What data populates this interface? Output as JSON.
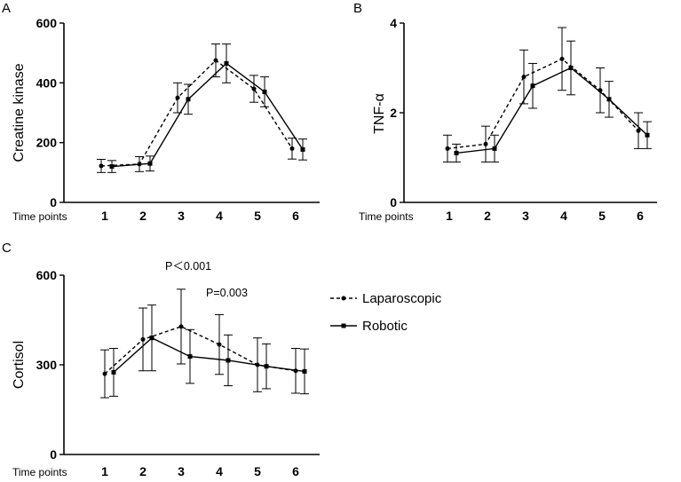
{
  "chart_data": [
    {
      "panel": "A",
      "type": "line",
      "ylabel": "Creatine kinase",
      "xlabel": "Time points",
      "categories": [
        "1",
        "2",
        "3",
        "4",
        "5",
        "6"
      ],
      "ylim": [
        0,
        600
      ],
      "yticks": [
        0,
        200,
        400,
        600
      ],
      "annotations": [],
      "series": [
        {
          "name": "Laparoscopic",
          "values": [
            122,
            128,
            350,
            475,
            380,
            180
          ],
          "errors": [
            22,
            25,
            50,
            55,
            45,
            35
          ]
        },
        {
          "name": "Robotic",
          "values": [
            120,
            130,
            345,
            465,
            370,
            177
          ],
          "errors": [
            20,
            25,
            50,
            65,
            50,
            35
          ]
        }
      ]
    },
    {
      "panel": "B",
      "type": "line",
      "ylabel": "TNF-α",
      "xlabel": "Time points",
      "categories": [
        "1",
        "2",
        "3",
        "4",
        "5",
        "6"
      ],
      "ylim": [
        0,
        4
      ],
      "yticks": [
        0,
        2,
        4
      ],
      "annotations": [],
      "series": [
        {
          "name": "Laparoscopic",
          "values": [
            1.2,
            1.3,
            2.8,
            3.2,
            2.5,
            1.6
          ],
          "errors": [
            0.3,
            0.4,
            0.6,
            0.7,
            0.5,
            0.4
          ]
        },
        {
          "name": "Robotic",
          "values": [
            1.1,
            1.2,
            2.6,
            3.0,
            2.3,
            1.5
          ],
          "errors": [
            0.2,
            0.3,
            0.5,
            0.6,
            0.4,
            0.3
          ]
        }
      ]
    },
    {
      "panel": "C",
      "type": "line",
      "ylabel": "Cortisol",
      "xlabel": "Time points",
      "categories": [
        "1",
        "2",
        "3",
        "4",
        "5",
        "6"
      ],
      "ylim": [
        0,
        600
      ],
      "yticks": [
        0,
        300,
        600
      ],
      "annotations": [
        "P＜0.001",
        "P=0.003"
      ],
      "series": [
        {
          "name": "Laparoscopic",
          "values": [
            270,
            385,
            428,
            368,
            300,
            280
          ],
          "errors": [
            80,
            105,
            125,
            100,
            90,
            75
          ]
        },
        {
          "name": "Robotic",
          "values": [
            275,
            390,
            328,
            315,
            295,
            278
          ],
          "errors": [
            80,
            110,
            90,
            85,
            75,
            75
          ]
        }
      ]
    }
  ],
  "legend": {
    "items": [
      "Laparoscopic",
      "Robotic"
    ]
  }
}
